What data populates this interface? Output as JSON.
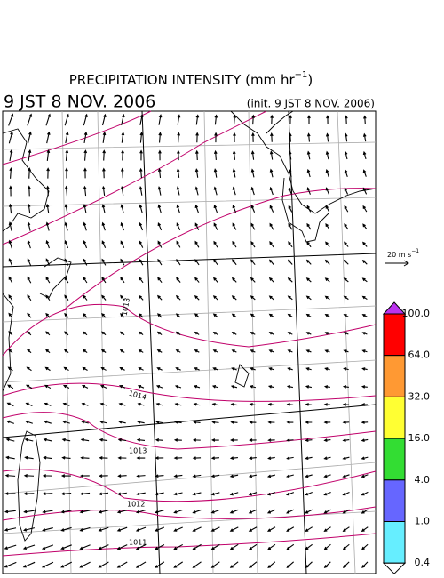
{
  "header": {
    "title_main": "PRECIPITATION INTENSITY (mm hr",
    "title_sup": "−1",
    "title_end": ")",
    "valid_time": "9 JST 8 NOV. 2006",
    "init_time": "(init. 9 JST 8 NOV. 2006)"
  },
  "reference_vector": {
    "label_main": "20 m s",
    "label_sup": "−1"
  },
  "colorbar": {
    "labels": [
      "100.0",
      "64.0",
      "32.0",
      "16.0",
      "4.0",
      "1.0",
      "0.4"
    ],
    "colors": [
      "#ff0000",
      "#ff9933",
      "#ffff33",
      "#33dd33",
      "#6666ff",
      "#66eeff"
    ],
    "over_color": "#bb33ee",
    "under_color": "#ffffff"
  },
  "contour_labels": [
    "1013",
    "1014",
    "1013",
    "1012",
    "1011"
  ]
}
